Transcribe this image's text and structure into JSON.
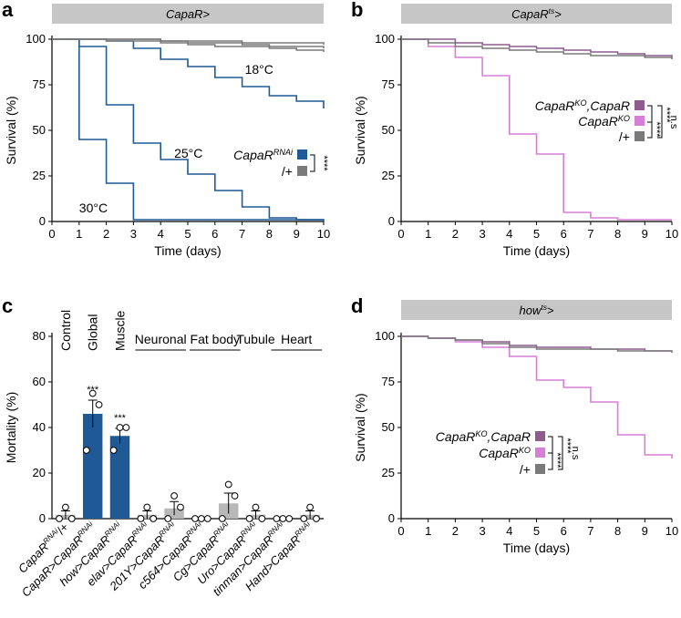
{
  "colors": {
    "blue": "#1f5a96",
    "grey": "#7a7a7a",
    "grey_light": "#b8b8b8",
    "pink": "#d77fd6",
    "purple": "#8e5b8f",
    "banner": "#c6c6c6"
  },
  "chart_data": [
    {
      "id": "a",
      "panel_label": "a",
      "type": "line",
      "banner": "CapaR>",
      "xlabel": "Time (days)",
      "ylabel": "Survival (%)",
      "xlim": [
        0,
        10
      ],
      "ylim": [
        0,
        100
      ],
      "xticks": [
        "0",
        "1",
        "2",
        "3",
        "4",
        "5",
        "6",
        "7",
        "8",
        "9",
        "10"
      ],
      "yticks": [
        "0",
        "25",
        "50",
        "75",
        "100"
      ],
      "legend": [
        {
          "label": "CapaR",
          "sup": "RNAi",
          "color": "#1f5a96"
        },
        {
          "label": "/+",
          "sup": "",
          "color": "#7a7a7a"
        }
      ],
      "significance": [
        "****"
      ],
      "annotations": [
        "18°C",
        "25°C",
        "30°C"
      ],
      "series": [
        {
          "name": "CapaR>CapaR RNAi 18°C",
          "color": "#1f5a96",
          "x": [
            0,
            1,
            2,
            3,
            4,
            5,
            6,
            7,
            8,
            9,
            10
          ],
          "y": [
            100,
            100,
            99,
            95,
            89,
            85,
            79,
            74,
            69,
            66,
            62
          ]
        },
        {
          "name": "CapaR>CapaR RNAi 25°C",
          "color": "#1f5a96",
          "x": [
            0,
            1,
            2,
            3,
            4,
            5,
            6,
            7,
            8,
            9,
            10
          ],
          "y": [
            100,
            96,
            64,
            43,
            34,
            26,
            17,
            8,
            2,
            1,
            1
          ]
        },
        {
          "name": "CapaR>CapaR RNAi 30°C",
          "color": "#1f5a96",
          "x": [
            0,
            1,
            2,
            3,
            4,
            5,
            6,
            7,
            8,
            9,
            10
          ],
          "y": [
            100,
            45,
            21,
            1,
            1,
            1,
            1,
            1,
            1,
            1,
            0
          ]
        },
        {
          "name": "CapaR>/+ 18°C",
          "color": "#7a7a7a",
          "x": [
            0,
            1,
            2,
            3,
            4,
            5,
            6,
            7,
            8,
            9,
            10
          ],
          "y": [
            100,
            100,
            100,
            100,
            99,
            99,
            99,
            98,
            98,
            98,
            97
          ]
        },
        {
          "name": "CapaR>/+ 25°C",
          "color": "#7a7a7a",
          "x": [
            0,
            1,
            2,
            3,
            4,
            5,
            6,
            7,
            8,
            9,
            10
          ],
          "y": [
            100,
            100,
            100,
            100,
            99,
            98,
            98,
            97,
            96,
            96,
            95
          ]
        },
        {
          "name": "CapaR>/+ 30°C",
          "color": "#7a7a7a",
          "x": [
            0,
            1,
            2,
            3,
            4,
            5,
            6,
            7,
            8,
            9,
            10
          ],
          "y": [
            100,
            100,
            99,
            99,
            98,
            97,
            96,
            96,
            95,
            94,
            93
          ]
        }
      ]
    },
    {
      "id": "b",
      "panel_label": "b",
      "type": "line",
      "banner": "CapaR",
      "banner_sup": "ts",
      "banner_suffix": ">",
      "xlabel": "Time (days)",
      "ylabel": "Survival (%)",
      "xlim": [
        0,
        10
      ],
      "ylim": [
        0,
        100
      ],
      "xticks": [
        "0",
        "1",
        "2",
        "3",
        "4",
        "5",
        "6",
        "7",
        "8",
        "9",
        "10"
      ],
      "yticks": [
        "0",
        "25",
        "50",
        "75",
        "100"
      ],
      "legend": [
        {
          "label": "CapaR",
          "sup": "KO",
          "suffix": ",CapaR",
          "color": "#8e5b8f"
        },
        {
          "label": "CapaR",
          "sup": "KO",
          "suffix": "",
          "color": "#d77fd6"
        },
        {
          "label": "/+",
          "sup": "",
          "suffix": "",
          "color": "#7a7a7a"
        }
      ],
      "significance": [
        "n.s",
        "****",
        "****"
      ],
      "series": [
        {
          "name": "CapaR KO",
          "color": "#d77fd6",
          "x": [
            0,
            1,
            2,
            3,
            4,
            5,
            6,
            7,
            8,
            9,
            10
          ],
          "y": [
            100,
            96,
            90,
            80,
            48,
            37,
            5,
            2,
            1,
            1,
            1
          ]
        },
        {
          "name": "CapaR KO,CapaR",
          "color": "#8e5b8f",
          "x": [
            0,
            1,
            2,
            3,
            4,
            5,
            6,
            7,
            8,
            9,
            10
          ],
          "y": [
            100,
            100,
            98,
            97,
            96,
            95,
            94,
            93,
            92,
            91,
            90
          ]
        },
        {
          "name": "/+",
          "color": "#7a7a7a",
          "x": [
            0,
            1,
            2,
            3,
            4,
            5,
            6,
            7,
            8,
            9,
            10
          ],
          "y": [
            100,
            98,
            96,
            95,
            94,
            93,
            92,
            91,
            91,
            90,
            89
          ]
        }
      ]
    },
    {
      "id": "c",
      "panel_label": "c",
      "type": "bar",
      "ylabel": "Mortality (%)",
      "ylim": [
        0,
        80
      ],
      "yticks": [
        "0",
        "20",
        "40",
        "60",
        "80"
      ],
      "region_labels": [
        "Control",
        "Global",
        "Muscle",
        "Neuronal",
        "Fat body",
        "Tubule",
        "Heart"
      ],
      "categories": [
        {
          "name": "CapaR",
          "sup": "RNAi",
          "suffix": "/+"
        },
        {
          "name": "CapaR>CapaR",
          "sup": "RNAi",
          "suffix": ""
        },
        {
          "name": "how>CapaR",
          "sup": "RNAi",
          "suffix": ""
        },
        {
          "name": "elav>CapaR",
          "sup": "RNAi",
          "suffix": ""
        },
        {
          "name": "201Y>CapaR",
          "sup": "RNAi",
          "suffix": ""
        },
        {
          "name": "c564>CapaR",
          "sup": "RNAi",
          "suffix": ""
        },
        {
          "name": "Cg>CapaR",
          "sup": "RNAi",
          "suffix": ""
        },
        {
          "name": "Uro>CapaR",
          "sup": "RNAi",
          "suffix": ""
        },
        {
          "name": "tinman>CapaR",
          "sup": "RNAi",
          "suffix": ""
        },
        {
          "name": "Hand>CapaR",
          "sup": "RNAi",
          "suffix": ""
        }
      ],
      "values": [
        1.7,
        46,
        36.3,
        1.7,
        4.5,
        0,
        6.7,
        1.7,
        0,
        1.7
      ],
      "errors": [
        1.7,
        6,
        3.3,
        1.7,
        3,
        0,
        4.5,
        1.7,
        0,
        1.7
      ],
      "points": [
        [
          0,
          5,
          0
        ],
        [
          30,
          55,
          50
        ],
        [
          30,
          40,
          40
        ],
        [
          0,
          5,
          0
        ],
        [
          0,
          10,
          5
        ],
        [
          0,
          0,
          0
        ],
        [
          0,
          15,
          10
        ],
        [
          0,
          5,
          0
        ],
        [
          0,
          0,
          0
        ],
        [
          0,
          5,
          0
        ]
      ],
      "bar_colors": [
        "#b8b8b8",
        "#1f5a96",
        "#1f5a96",
        "#b8b8b8",
        "#b8b8b8",
        "#b8b8b8",
        "#b8b8b8",
        "#b8b8b8",
        "#b8b8b8",
        "#b8b8b8"
      ],
      "significance": [
        "",
        "***",
        "***",
        "",
        "",
        "",
        "",
        "",
        "",
        ""
      ]
    },
    {
      "id": "d",
      "panel_label": "d",
      "type": "line",
      "banner": "how",
      "banner_sup": "ts",
      "banner_suffix": ">",
      "xlabel": "Time (days)",
      "ylabel": "Survival (%)",
      "xlim": [
        0,
        10
      ],
      "ylim": [
        0,
        100
      ],
      "xticks": [
        "0",
        "1",
        "2",
        "3",
        "4",
        "5",
        "6",
        "7",
        "8",
        "9",
        "10"
      ],
      "yticks": [
        "0",
        "25",
        "50",
        "75",
        "100"
      ],
      "legend": [
        {
          "label": "CapaR",
          "sup": "KO",
          "suffix": ",CapaR",
          "color": "#8e5b8f"
        },
        {
          "label": "CapaR",
          "sup": "KO",
          "suffix": "",
          "color": "#d77fd6"
        },
        {
          "label": "/+",
          "sup": "",
          "suffix": "",
          "color": "#7a7a7a"
        }
      ],
      "significance": [
        "n.s",
        "****",
        "****"
      ],
      "series": [
        {
          "name": "CapaR KO",
          "color": "#d77fd6",
          "x": [
            0,
            1,
            2,
            3,
            4,
            5,
            6,
            7,
            8,
            9,
            10
          ],
          "y": [
            100,
            99,
            97,
            94,
            89,
            76,
            72,
            64,
            46,
            35,
            33
          ]
        },
        {
          "name": "CapaR KO,CapaR",
          "color": "#8e5b8f",
          "x": [
            0,
            1,
            2,
            3,
            4,
            5,
            6,
            7,
            8,
            9,
            10
          ],
          "y": [
            100,
            99,
            98,
            97,
            95,
            94,
            94,
            93,
            93,
            92,
            92
          ]
        },
        {
          "name": "/+",
          "color": "#7a7a7a",
          "x": [
            0,
            1,
            2,
            3,
            4,
            5,
            6,
            7,
            8,
            9,
            10
          ],
          "y": [
            100,
            99,
            98,
            96,
            94,
            93,
            93,
            93,
            92,
            92,
            91
          ]
        }
      ]
    }
  ]
}
